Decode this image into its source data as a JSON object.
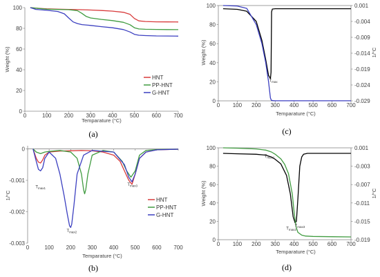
{
  "colors": {
    "HNT": "#d83a3a",
    "PP-HNT": "#3f9b3f",
    "G-HNT": "#3b3fc0",
    "black": "#000000",
    "blue": "#3b3fc0",
    "green": "#3f9b3f"
  },
  "chart_data": [
    {
      "id": "a",
      "panel_label": "(a)",
      "type": "line",
      "xlabel": "Temparature (°C)",
      "ylabel": "Weight (%)",
      "xlim": [
        0,
        700
      ],
      "ylim": [
        0,
        100
      ],
      "xticks": [
        "0",
        "100",
        "200",
        "300",
        "400",
        "500",
        "600",
        "700"
      ],
      "yticks": [
        "0",
        "20",
        "40",
        "60",
        "80",
        "100"
      ],
      "legend": {
        "position": "right",
        "entries": [
          "HNT",
          "PP-HNT",
          "G-HNT"
        ]
      },
      "series": [
        {
          "name": "HNT",
          "color": "HNT",
          "x": [
            25,
            50,
            100,
            150,
            200,
            250,
            300,
            350,
            400,
            450,
            480,
            500,
            520,
            550,
            600,
            650,
            700
          ],
          "y": [
            100,
            99.5,
            98.8,
            98.5,
            98.3,
            98.0,
            97.7,
            97.2,
            96.6,
            95.5,
            93.5,
            89.5,
            87.2,
            86.6,
            86.3,
            86.2,
            86.1
          ]
        },
        {
          "name": "PP-HNT",
          "color": "PP-HNT",
          "x": [
            25,
            50,
            100,
            150,
            200,
            240,
            260,
            280,
            300,
            350,
            400,
            450,
            480,
            500,
            520,
            550,
            600,
            650,
            700
          ],
          "y": [
            100,
            99.5,
            98.5,
            98.2,
            98.0,
            97.0,
            94.5,
            91.5,
            90.0,
            88.6,
            87.5,
            85.8,
            83.5,
            80.5,
            79.4,
            79.1,
            78.9,
            78.8,
            78.7
          ]
        },
        {
          "name": "G-HNT",
          "color": "G-HNT",
          "x": [
            25,
            50,
            100,
            150,
            180,
            200,
            220,
            240,
            260,
            300,
            350,
            400,
            450,
            480,
            500,
            520,
            550,
            600,
            650,
            700
          ],
          "y": [
            100,
            98.3,
            97.4,
            96.3,
            94.0,
            90.0,
            86.2,
            84.6,
            83.6,
            82.8,
            81.6,
            80.5,
            78.8,
            76.5,
            74.2,
            73.3,
            73.0,
            72.7,
            72.6,
            72.5
          ]
        }
      ]
    },
    {
      "id": "b",
      "panel_label": "(b)",
      "type": "line",
      "xlabel": "Temparature (°C)",
      "ylabel": "1/°C",
      "xlim": [
        0,
        700
      ],
      "ylim": [
        -0.003,
        0.0001
      ],
      "xticks": [
        "0",
        "100",
        "200",
        "300",
        "400",
        "500",
        "600",
        "700"
      ],
      "yticks": [
        "0",
        "-0.001",
        "-0.002",
        "-0.003"
      ],
      "ytick_values": [
        0,
        -0.001,
        -0.002,
        -0.003
      ],
      "legend": {
        "position": "right",
        "entries": [
          "HNT",
          "PP-HNT",
          "G-HNT"
        ]
      },
      "annotations": [
        {
          "label": "T",
          "sub": "max1",
          "x": 60,
          "y": -0.00125
        },
        {
          "label": "T",
          "sub": "max2",
          "x": 205,
          "y": -0.00265
        },
        {
          "label": "T",
          "sub": "max3",
          "x": 487,
          "y": -0.00118
        }
      ],
      "series": [
        {
          "name": "HNT",
          "color": "HNT",
          "x": [
            25,
            40,
            50,
            60,
            70,
            80,
            100,
            150,
            200,
            250,
            300,
            350,
            400,
            430,
            450,
            470,
            485,
            500,
            520,
            550,
            600,
            650,
            700
          ],
          "y": [
            0,
            -0.0003,
            -0.00042,
            -0.00045,
            -0.00035,
            -0.0002,
            -0.0001,
            -7e-05,
            -6e-05,
            -5e-05,
            -6e-05,
            -0.0001,
            -0.0002,
            -0.0004,
            -0.0007,
            -0.001,
            -0.00113,
            -0.0008,
            -0.0003,
            -0.0001,
            -3e-05,
            -2e-05,
            -1e-05
          ]
        },
        {
          "name": "PP-HNT",
          "color": "PP-HNT",
          "x": [
            25,
            40,
            60,
            80,
            100,
            150,
            200,
            230,
            250,
            260,
            265,
            270,
            280,
            300,
            350,
            400,
            440,
            460,
            480,
            500,
            520,
            550,
            600,
            700
          ],
          "y": [
            0,
            -0.0001,
            -0.00015,
            -0.0001,
            -8e-05,
            -5e-05,
            -0.0001,
            -0.0003,
            -0.0008,
            -0.0013,
            -0.00143,
            -0.0013,
            -0.0008,
            -0.0002,
            -5e-05,
            -0.0001,
            -0.0004,
            -0.0007,
            -0.0009,
            -0.0007,
            -0.0002,
            -5e-05,
            -2e-05,
            -1e-05
          ]
        },
        {
          "name": "G-HNT",
          "color": "G-HNT",
          "x": [
            25,
            40,
            50,
            60,
            70,
            80,
            100,
            130,
            150,
            170,
            185,
            195,
            200,
            205,
            215,
            230,
            260,
            300,
            400,
            450,
            470,
            485,
            500,
            520,
            550,
            600,
            700
          ],
          "y": [
            0,
            -0.0004,
            -0.00065,
            -0.0007,
            -0.0006,
            -0.0003,
            -0.0001,
            -0.0003,
            -0.0008,
            -0.0015,
            -0.0021,
            -0.00245,
            -0.0025,
            -0.0024,
            -0.0018,
            -0.0008,
            -0.0002,
            -5e-05,
            -0.0001,
            -0.0005,
            -0.0009,
            -0.00105,
            -0.0008,
            -0.0003,
            -0.0001,
            -3e-05,
            -1e-05
          ]
        }
      ]
    },
    {
      "id": "c",
      "panel_label": "(c)",
      "type": "line",
      "xlabel": "Temparature (°C)",
      "ylabel": "Weight (%)",
      "y2label": "1/°C",
      "xlim": [
        0,
        700
      ],
      "ylim": [
        0,
        100
      ],
      "y2lim": [
        -0.029,
        0.001
      ],
      "xticks": [
        "0",
        "100",
        "200",
        "300",
        "400",
        "500",
        "600",
        "700"
      ],
      "yticks": [
        "0",
        "20",
        "40",
        "60",
        "80",
        "100"
      ],
      "y2ticks": [
        "0.001",
        "-0.004",
        "-0.009",
        "-0.014",
        "-0.019",
        "-0.024",
        "-0.029"
      ],
      "y2tick_values": [
        0.001,
        -0.004,
        -0.009,
        -0.014,
        -0.019,
        -0.024,
        -0.029
      ],
      "annotations": [
        {
          "label": "T",
          "sub": "max",
          "x": 290,
          "y2": -0.023
        }
      ],
      "series": [
        {
          "name": "",
          "color": "black",
          "axis": "y2",
          "x": [
            25,
            100,
            150,
            200,
            230,
            250,
            265,
            275,
            278,
            281,
            285,
            300,
            400,
            500,
            600,
            700
          ],
          "y": [
            0,
            -0.0002,
            -0.0008,
            -0.004,
            -0.01,
            -0.016,
            -0.021,
            -0.022,
            -0.02,
            -0.001,
            -0.0001,
            0,
            0,
            0,
            0,
            0
          ]
        },
        {
          "name": "",
          "color": "blue",
          "axis": "y",
          "x": [
            25,
            100,
            150,
            200,
            230,
            250,
            265,
            275,
            280,
            290,
            300,
            400,
            500,
            600,
            700
          ],
          "y": [
            100,
            99.5,
            97.0,
            80.0,
            60.0,
            40.0,
            20.0,
            3.0,
            0.5,
            0.2,
            0.1,
            0.1,
            0.1,
            0.1,
            0.1
          ]
        }
      ]
    },
    {
      "id": "d",
      "panel_label": "(d)",
      "type": "line",
      "xlabel": "Temparature (°C)",
      "ylabel": "Weight (%)",
      "y2label": "1/°C",
      "xlim": [
        0,
        700
      ],
      "ylim": [
        0,
        100
      ],
      "y2lim": [
        -0.019,
        0.001
      ],
      "xticks": [
        "0",
        "100",
        "200",
        "300",
        "400",
        "500",
        "600",
        "700"
      ],
      "yticks": [
        "0",
        "20",
        "40",
        "60",
        "80",
        "100"
      ],
      "y2ticks": [
        "0.001",
        "-0.003",
        "-0.007",
        "-0.011",
        "-0.015",
        "-0.019"
      ],
      "y2tick_values": [
        0.001,
        -0.003,
        -0.007,
        -0.011,
        -0.015,
        -0.019
      ],
      "annotations": [
        {
          "label": "T",
          "sub": "max1",
          "x": 270,
          "y2": -0.0011
        },
        {
          "label": "T",
          "sub": "max2",
          "x": 385,
          "y2": -0.0168
        },
        {
          "label": "T",
          "sub": "max3",
          "x": 430,
          "y2": -0.0162
        }
      ],
      "series": [
        {
          "name": "",
          "color": "black",
          "axis": "y2",
          "x": [
            25,
            100,
            200,
            250,
            280,
            300,
            330,
            360,
            380,
            395,
            405,
            412,
            420,
            430,
            440,
            450,
            470,
            500,
            600,
            700
          ],
          "y": [
            -0.0002,
            -0.0003,
            -0.0004,
            -0.0006,
            -0.001,
            -0.0015,
            -0.0025,
            -0.005,
            -0.009,
            -0.014,
            -0.0153,
            -0.015,
            -0.01,
            -0.003,
            -0.001,
            -0.0004,
            -0.0002,
            -0.0002,
            -0.0002,
            -0.0002
          ]
        },
        {
          "name": "",
          "color": "green",
          "axis": "y",
          "x": [
            25,
            100,
            200,
            250,
            280,
            300,
            330,
            350,
            370,
            390,
            400,
            410,
            420,
            440,
            460,
            500,
            600,
            700
          ],
          "y": [
            100,
            99.6,
            98.8,
            97.5,
            95.5,
            93.0,
            88.0,
            82.0,
            72.0,
            50.0,
            30.0,
            14.0,
            8.0,
            5.0,
            4.0,
            3.5,
            3.2,
            3.0
          ]
        }
      ]
    }
  ]
}
